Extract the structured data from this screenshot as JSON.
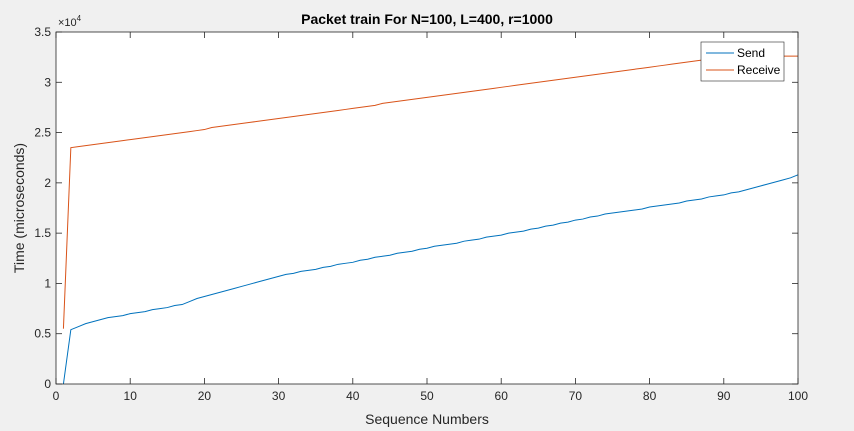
{
  "chart_data": {
    "type": "line",
    "title": "Packet train For N=100, L=400, r=1000",
    "xlabel": "Sequence Numbers",
    "ylabel": "Time (microseconds)",
    "xlim": [
      0,
      100
    ],
    "ylim": [
      0,
      3.5
    ],
    "y_multiplier_base": "×10",
    "y_multiplier_exp": "4",
    "xticks": [
      "0",
      "10",
      "20",
      "30",
      "40",
      "50",
      "60",
      "70",
      "80",
      "90",
      "100"
    ],
    "yticks": [
      "0",
      "0.5",
      "1",
      "1.5",
      "2",
      "2.5",
      "3",
      "3.5"
    ],
    "grid": false,
    "legend_position": "top-right",
    "colors": {
      "axes_background": "#ffffff",
      "figure_background": "#f0f0f0",
      "axis": "#262626",
      "send": "#0072bd",
      "receive": "#d95319"
    },
    "series": [
      {
        "name": "Send",
        "x": [
          1,
          2,
          3,
          4,
          5,
          6,
          7,
          8,
          9,
          10,
          11,
          12,
          13,
          14,
          15,
          16,
          17,
          18,
          19,
          20,
          21,
          22,
          23,
          24,
          25,
          26,
          27,
          28,
          29,
          30,
          31,
          32,
          33,
          34,
          35,
          36,
          37,
          38,
          39,
          40,
          41,
          42,
          43,
          44,
          45,
          46,
          47,
          48,
          49,
          50,
          51,
          52,
          53,
          54,
          55,
          56,
          57,
          58,
          59,
          60,
          61,
          62,
          63,
          64,
          65,
          66,
          67,
          68,
          69,
          70,
          71,
          72,
          73,
          74,
          75,
          76,
          77,
          78,
          79,
          80,
          81,
          82,
          83,
          84,
          85,
          86,
          87,
          88,
          89,
          90,
          91,
          92,
          93,
          94,
          95,
          96,
          97,
          98,
          99,
          100
        ],
        "values": [
          0.0,
          0.54,
          0.57,
          0.6,
          0.62,
          0.64,
          0.66,
          0.67,
          0.68,
          0.7,
          0.71,
          0.72,
          0.74,
          0.75,
          0.76,
          0.78,
          0.79,
          0.82,
          0.85,
          0.87,
          0.89,
          0.91,
          0.93,
          0.95,
          0.97,
          0.99,
          1.01,
          1.03,
          1.05,
          1.07,
          1.09,
          1.1,
          1.12,
          1.13,
          1.14,
          1.16,
          1.17,
          1.19,
          1.2,
          1.21,
          1.23,
          1.24,
          1.26,
          1.27,
          1.28,
          1.3,
          1.31,
          1.32,
          1.34,
          1.35,
          1.37,
          1.38,
          1.39,
          1.4,
          1.42,
          1.43,
          1.44,
          1.46,
          1.47,
          1.48,
          1.5,
          1.51,
          1.52,
          1.54,
          1.55,
          1.57,
          1.58,
          1.6,
          1.61,
          1.63,
          1.64,
          1.66,
          1.67,
          1.69,
          1.7,
          1.71,
          1.72,
          1.73,
          1.74,
          1.76,
          1.77,
          1.78,
          1.79,
          1.8,
          1.82,
          1.83,
          1.84,
          1.86,
          1.87,
          1.88,
          1.9,
          1.91,
          1.93,
          1.95,
          1.97,
          1.99,
          2.01,
          2.03,
          2.05,
          2.08
        ]
      },
      {
        "name": "Receive",
        "x": [
          1,
          2,
          3,
          4,
          5,
          6,
          7,
          8,
          9,
          10,
          11,
          12,
          13,
          14,
          15,
          16,
          17,
          18,
          19,
          20,
          21,
          22,
          23,
          24,
          25,
          26,
          27,
          28,
          29,
          30,
          31,
          32,
          33,
          34,
          35,
          36,
          37,
          38,
          39,
          40,
          41,
          42,
          43,
          44,
          45,
          46,
          47,
          48,
          49,
          50,
          51,
          52,
          53,
          54,
          55,
          56,
          57,
          58,
          59,
          60,
          61,
          62,
          63,
          64,
          65,
          66,
          67,
          68,
          69,
          70,
          71,
          72,
          73,
          74,
          75,
          76,
          77,
          78,
          79,
          80,
          81,
          82,
          83,
          84,
          85,
          86,
          87,
          88,
          89,
          90,
          91,
          92,
          93,
          94,
          95,
          96,
          97,
          98,
          99,
          100
        ],
        "values": [
          0.55,
          2.35,
          2.36,
          2.37,
          2.38,
          2.39,
          2.4,
          2.41,
          2.42,
          2.43,
          2.44,
          2.45,
          2.46,
          2.47,
          2.48,
          2.49,
          2.5,
          2.51,
          2.52,
          2.53,
          2.55,
          2.56,
          2.57,
          2.58,
          2.59,
          2.6,
          2.61,
          2.62,
          2.63,
          2.64,
          2.65,
          2.66,
          2.67,
          2.68,
          2.69,
          2.7,
          2.71,
          2.72,
          2.73,
          2.74,
          2.75,
          2.76,
          2.77,
          2.79,
          2.8,
          2.81,
          2.82,
          2.83,
          2.84,
          2.85,
          2.86,
          2.87,
          2.88,
          2.89,
          2.9,
          2.91,
          2.92,
          2.93,
          2.94,
          2.95,
          2.96,
          2.97,
          2.98,
          2.99,
          3.0,
          3.01,
          3.02,
          3.03,
          3.04,
          3.05,
          3.06,
          3.07,
          3.08,
          3.09,
          3.1,
          3.11,
          3.12,
          3.13,
          3.14,
          3.15,
          3.16,
          3.17,
          3.18,
          3.19,
          3.2,
          3.21,
          3.22,
          3.23,
          3.24,
          3.24,
          3.24,
          3.25,
          3.25,
          3.25,
          3.25,
          3.25,
          3.26,
          3.26,
          3.26,
          3.26
        ]
      }
    ]
  }
}
